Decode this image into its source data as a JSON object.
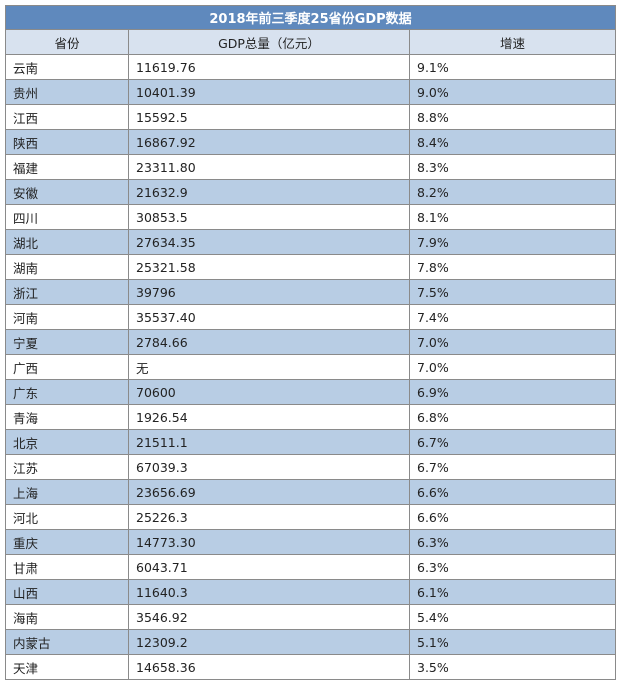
{
  "table": {
    "title": "2018年前三季度25省份GDP数据",
    "headers": [
      "省份",
      "GDP总量（亿元）",
      "增速"
    ],
    "rows": [
      [
        "云南",
        "11619.76",
        "9.1%"
      ],
      [
        "贵州",
        "10401.39",
        "9.0%"
      ],
      [
        "江西",
        "15592.5",
        "8.8%"
      ],
      [
        "陕西",
        "16867.92",
        "8.4%"
      ],
      [
        "福建",
        "23311.80",
        "8.3%"
      ],
      [
        "安徽",
        "21632.9",
        "8.2%"
      ],
      [
        "四川",
        "30853.5",
        "8.1%"
      ],
      [
        "湖北",
        "27634.35",
        "7.9%"
      ],
      [
        "湖南",
        "25321.58",
        "7.8%"
      ],
      [
        "浙江",
        "39796",
        "7.5%"
      ],
      [
        "河南",
        "35537.40",
        "7.4%"
      ],
      [
        "宁夏",
        "2784.66",
        "7.0%"
      ],
      [
        "广西",
        "无",
        "7.0%"
      ],
      [
        "广东",
        "70600",
        "6.9%"
      ],
      [
        "青海",
        "1926.54",
        "6.8%"
      ],
      [
        "北京",
        "21511.1",
        "6.7%"
      ],
      [
        "江苏",
        "67039.3",
        "6.7%"
      ],
      [
        "上海",
        "23656.69",
        "6.6%"
      ],
      [
        "河北",
        "25226.3",
        "6.6%"
      ],
      [
        "重庆",
        "14773.30",
        "6.3%"
      ],
      [
        "甘肃",
        "6043.71",
        "6.3%"
      ],
      [
        "山西",
        "11640.3",
        "6.1%"
      ],
      [
        "海南",
        "3546.92",
        "5.4%"
      ],
      [
        "内蒙古",
        "12309.2",
        "5.1%"
      ],
      [
        "天津",
        "14658.36",
        "3.5%"
      ]
    ]
  },
  "colors": {
    "title_bg": "#5f89bd",
    "header_bg": "#d8e2ef",
    "row_even_bg": "#b8cde4",
    "row_odd_bg": "#ffffff"
  }
}
